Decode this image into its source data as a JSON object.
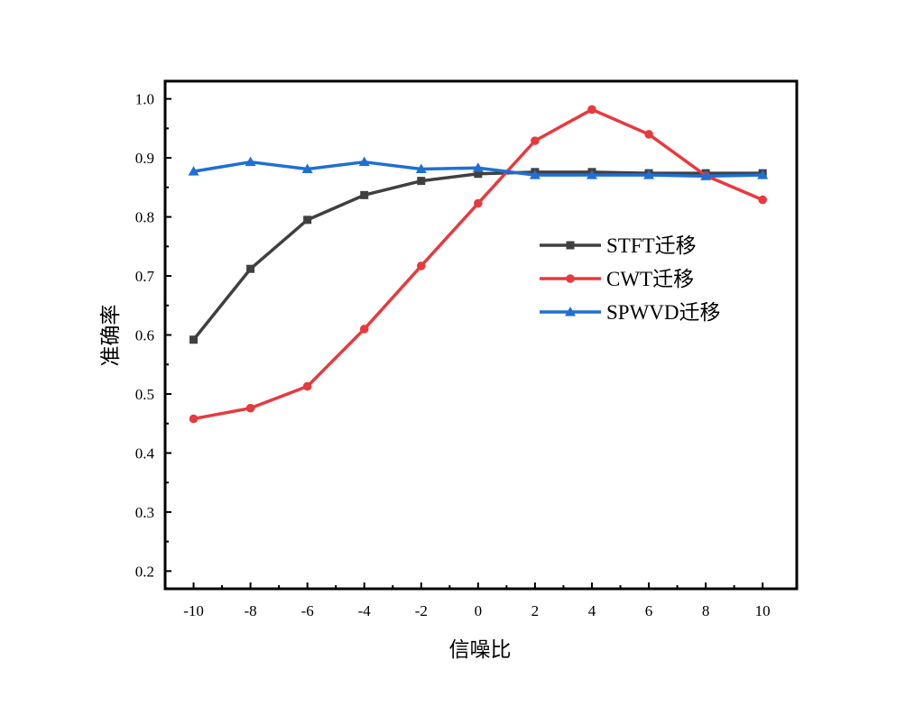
{
  "chart_data": {
    "type": "line",
    "xlabel": "信噪比",
    "ylabel": "准确率",
    "x": [
      -10,
      -8,
      -6,
      -4,
      -2,
      0,
      2,
      4,
      6,
      8,
      10
    ],
    "x_tick_labels": [
      "-10",
      "-8",
      "-6",
      "-4",
      "-2",
      "0",
      "2",
      "4",
      "6",
      "8",
      "10"
    ],
    "y_ticks": [
      0.2,
      0.3,
      0.4,
      0.5,
      0.6,
      0.7,
      0.8,
      0.9,
      1.0
    ],
    "y_tick_labels": [
      "0.2",
      "0.3",
      "0.4",
      "0.5",
      "0.6",
      "0.7",
      "0.8",
      "0.9",
      "1.0"
    ],
    "xlim": [
      -11,
      11.2
    ],
    "ylim": [
      0.17,
      1.03
    ],
    "grid": false,
    "legend_position": "right",
    "series": [
      {
        "name": "STFT迁移",
        "color": "#404040",
        "marker": "square",
        "values": [
          0.592,
          0.712,
          0.795,
          0.837,
          0.861,
          0.873,
          0.876,
          0.876,
          0.874,
          0.874,
          0.874
        ]
      },
      {
        "name": "CWT迁移",
        "color": "#e8393e",
        "marker": "circle",
        "values": [
          0.458,
          0.476,
          0.513,
          0.61,
          0.717,
          0.823,
          0.929,
          0.982,
          0.94,
          0.87,
          0.829
        ]
      },
      {
        "name": "SPWVD迁移",
        "color": "#1f6fd4",
        "marker": "triangle",
        "values": [
          0.877,
          0.893,
          0.881,
          0.893,
          0.881,
          0.883,
          0.871,
          0.871,
          0.871,
          0.869,
          0.871
        ]
      }
    ]
  }
}
